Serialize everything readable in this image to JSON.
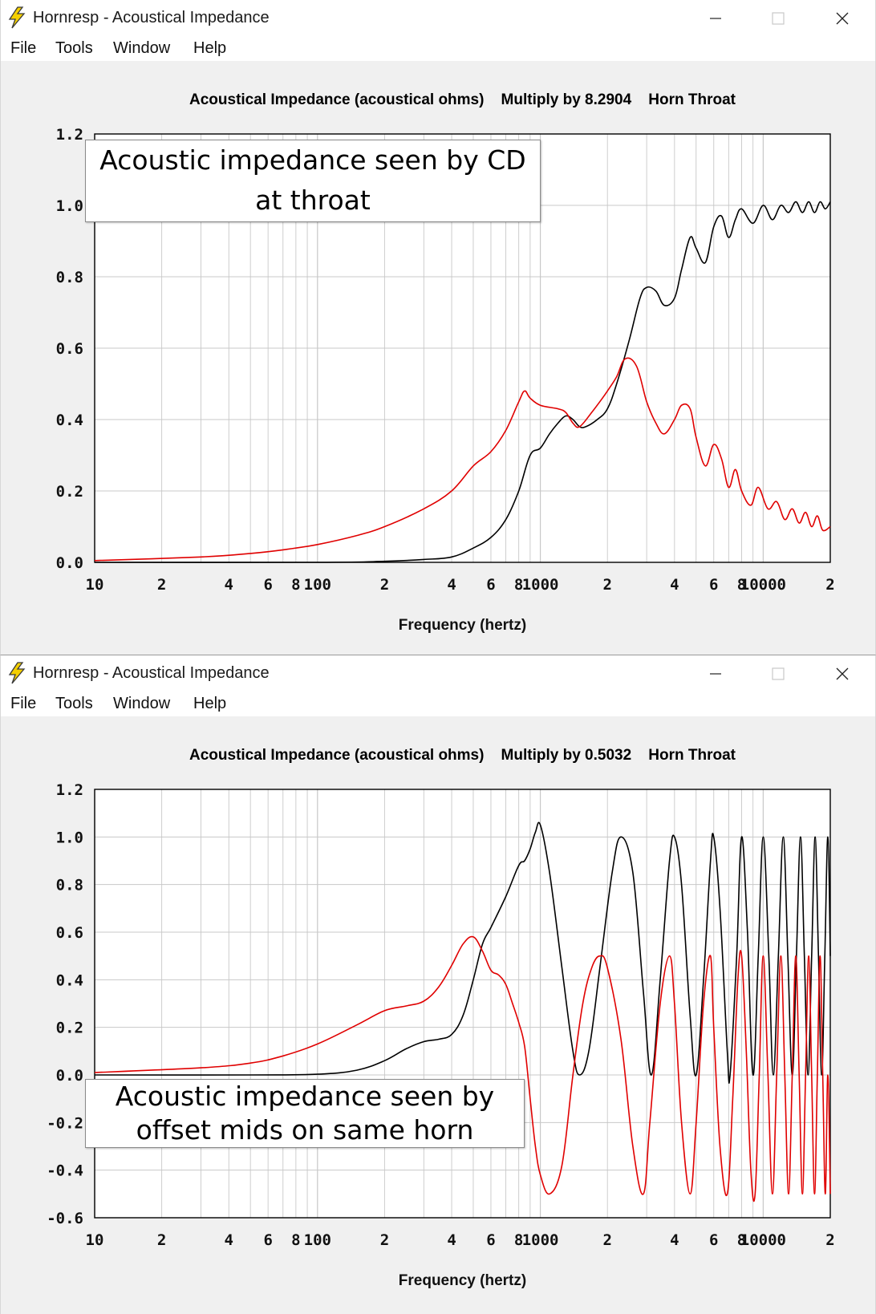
{
  "colors": {
    "response": "#000000",
    "reactance": "#e00000",
    "grid": "#c8c8c8",
    "plot_bg": "#ffffff",
    "panel_bg": "#f0f0f0"
  },
  "icons": {
    "app": "lightning-bolt-icon",
    "minimize": "minimize-icon",
    "maximize": "maximize-icon",
    "close": "close-icon"
  },
  "windows": [
    {
      "title": "Hornresp - Acoustical Impedance",
      "menu": [
        "File",
        "Tools",
        "Window",
        "Help"
      ],
      "annotation": [
        "Acoustic impedance seen by CD",
        "at throat"
      ]
    },
    {
      "title": "Hornresp - Acoustical Impedance",
      "menu": [
        "File",
        "Tools",
        "Window",
        "Help"
      ],
      "annotation": [
        "Acoustic impedance seen by",
        "offset mids on same horn"
      ]
    }
  ],
  "chart_data": [
    {
      "type": "line",
      "title": "Acoustical Impedance (acoustical ohms)    Multiply by 8.2904    Horn Throat",
      "xlabel": "Frequency (hertz)",
      "ylabel": "",
      "x_scale": "log",
      "xlim": [
        10,
        20000
      ],
      "ylim": [
        0.0,
        1.2
      ],
      "grid": true,
      "x_tick_labels": [
        "10",
        "2",
        "4",
        "6",
        "8",
        "100",
        "2",
        "4",
        "6",
        "8",
        "1000",
        "2",
        "4",
        "6",
        "8",
        "10000",
        "2"
      ],
      "y_tick_labels": [
        "0.0",
        "0.2",
        "0.4",
        "0.6",
        "0.8",
        "1.0",
        "1.2"
      ],
      "series": [
        {
          "color": "#000000",
          "points": [
            [
              10,
              0.0
            ],
            [
              100,
              0.0
            ],
            [
              200,
              0.003
            ],
            [
              300,
              0.008
            ],
            [
              400,
              0.015
            ],
            [
              500,
              0.04
            ],
            [
              600,
              0.07
            ],
            [
              700,
              0.12
            ],
            [
              800,
              0.2
            ],
            [
              900,
              0.3
            ],
            [
              1000,
              0.32
            ],
            [
              1100,
              0.36
            ],
            [
              1200,
              0.39
            ],
            [
              1300,
              0.41
            ],
            [
              1400,
              0.4
            ],
            [
              1500,
              0.38
            ],
            [
              1600,
              0.38
            ],
            [
              1800,
              0.4
            ],
            [
              2000,
              0.43
            ],
            [
              2200,
              0.5
            ],
            [
              2500,
              0.62
            ],
            [
              2800,
              0.74
            ],
            [
              3000,
              0.77
            ],
            [
              3300,
              0.76
            ],
            [
              3600,
              0.72
            ],
            [
              4000,
              0.74
            ],
            [
              4300,
              0.82
            ],
            [
              4700,
              0.91
            ],
            [
              5000,
              0.88
            ],
            [
              5500,
              0.84
            ],
            [
              6000,
              0.94
            ],
            [
              6500,
              0.97
            ],
            [
              7000,
              0.91
            ],
            [
              7500,
              0.96
            ],
            [
              8000,
              0.99
            ],
            [
              9000,
              0.95
            ],
            [
              10000,
              1.0
            ],
            [
              11000,
              0.96
            ],
            [
              12000,
              1.0
            ],
            [
              13000,
              0.98
            ],
            [
              14000,
              1.01
            ],
            [
              15000,
              0.98
            ],
            [
              16000,
              1.01
            ],
            [
              17000,
              0.98
            ],
            [
              18000,
              1.01
            ],
            [
              19000,
              0.99
            ],
            [
              20000,
              1.01
            ]
          ]
        },
        {
          "color": "#e00000",
          "points": [
            [
              10,
              0.005
            ],
            [
              30,
              0.015
            ],
            [
              50,
              0.025
            ],
            [
              70,
              0.035
            ],
            [
              100,
              0.05
            ],
            [
              150,
              0.075
            ],
            [
              200,
              0.1
            ],
            [
              300,
              0.15
            ],
            [
              400,
              0.2
            ],
            [
              500,
              0.27
            ],
            [
              600,
              0.31
            ],
            [
              700,
              0.37
            ],
            [
              800,
              0.45
            ],
            [
              850,
              0.48
            ],
            [
              900,
              0.46
            ],
            [
              1000,
              0.44
            ],
            [
              1200,
              0.43
            ],
            [
              1300,
              0.42
            ],
            [
              1400,
              0.39
            ],
            [
              1500,
              0.38
            ],
            [
              1700,
              0.42
            ],
            [
              1900,
              0.46
            ],
            [
              2000,
              0.48
            ],
            [
              2200,
              0.52
            ],
            [
              2400,
              0.57
            ],
            [
              2700,
              0.55
            ],
            [
              3000,
              0.45
            ],
            [
              3300,
              0.39
            ],
            [
              3600,
              0.36
            ],
            [
              4000,
              0.4
            ],
            [
              4300,
              0.44
            ],
            [
              4700,
              0.43
            ],
            [
              5000,
              0.35
            ],
            [
              5500,
              0.27
            ],
            [
              6000,
              0.33
            ],
            [
              6500,
              0.29
            ],
            [
              7000,
              0.21
            ],
            [
              7500,
              0.26
            ],
            [
              8000,
              0.2
            ],
            [
              8800,
              0.16
            ],
            [
              9500,
              0.21
            ],
            [
              10500,
              0.15
            ],
            [
              11500,
              0.17
            ],
            [
              12500,
              0.12
            ],
            [
              13500,
              0.15
            ],
            [
              14500,
              0.11
            ],
            [
              15500,
              0.14
            ],
            [
              16500,
              0.1
            ],
            [
              17500,
              0.13
            ],
            [
              18500,
              0.09
            ],
            [
              20000,
              0.1
            ]
          ]
        }
      ]
    },
    {
      "type": "line",
      "title": "Acoustical Impedance (acoustical ohms)    Multiply by 0.5032    Horn Throat",
      "xlabel": "Frequency (hertz)",
      "ylabel": "",
      "x_scale": "log",
      "xlim": [
        10,
        20000
      ],
      "ylim": [
        -0.6,
        1.2
      ],
      "grid": true,
      "x_tick_labels": [
        "10",
        "2",
        "4",
        "6",
        "8",
        "100",
        "2",
        "4",
        "6",
        "8",
        "1000",
        "2",
        "4",
        "6",
        "8",
        "10000",
        "2"
      ],
      "y_tick_labels": [
        "-0.6",
        "-0.4",
        "-0.2",
        "0.0",
        "0.2",
        "0.4",
        "0.6",
        "0.8",
        "1.0",
        "1.2"
      ],
      "series": [
        {
          "color": "#000000",
          "points": [
            [
              10,
              0.0
            ],
            [
              50,
              0.0
            ],
            [
              100,
              0.003
            ],
            [
              150,
              0.02
            ],
            [
              200,
              0.06
            ],
            [
              250,
              0.11
            ],
            [
              300,
              0.14
            ],
            [
              350,
              0.15
            ],
            [
              400,
              0.17
            ],
            [
              450,
              0.25
            ],
            [
              500,
              0.4
            ],
            [
              550,
              0.55
            ],
            [
              600,
              0.62
            ],
            [
              700,
              0.75
            ],
            [
              800,
              0.88
            ],
            [
              850,
              0.9
            ],
            [
              900,
              0.95
            ],
            [
              950,
              1.02
            ],
            [
              1000,
              1.05
            ],
            [
              1100,
              0.85
            ],
            [
              1250,
              0.45
            ],
            [
              1400,
              0.1
            ],
            [
              1500,
              0.0
            ],
            [
              1650,
              0.1
            ],
            [
              1850,
              0.45
            ],
            [
              2100,
              0.85
            ],
            [
              2300,
              1.0
            ],
            [
              2600,
              0.85
            ],
            [
              2900,
              0.35
            ],
            [
              3150,
              0.0
            ],
            [
              3450,
              0.4
            ],
            [
              3800,
              0.9
            ],
            [
              4000,
              1.0
            ],
            [
              4300,
              0.8
            ],
            [
              4700,
              0.25
            ],
            [
              5000,
              0.0
            ],
            [
              5400,
              0.4
            ],
            [
              5800,
              0.9
            ],
            [
              6000,
              1.0
            ],
            [
              6400,
              0.7
            ],
            [
              6900,
              0.1
            ],
            [
              7100,
              0.0
            ],
            [
              7600,
              0.5
            ],
            [
              8000,
              1.0
            ],
            [
              8500,
              0.6
            ],
            [
              9000,
              0.0
            ],
            [
              9500,
              0.5
            ],
            [
              10000,
              1.0
            ],
            [
              10600,
              0.5
            ],
            [
              11100,
              0.0
            ],
            [
              11700,
              0.5
            ],
            [
              12300,
              1.0
            ],
            [
              12900,
              0.5
            ],
            [
              13500,
              0.0
            ],
            [
              14100,
              0.5
            ],
            [
              14700,
              1.0
            ],
            [
              15300,
              0.5
            ],
            [
              15900,
              0.0
            ],
            [
              16500,
              0.5
            ],
            [
              17100,
              1.0
            ],
            [
              17700,
              0.5
            ],
            [
              18300,
              0.0
            ],
            [
              18900,
              0.5
            ],
            [
              19500,
              1.0
            ],
            [
              20000,
              0.5
            ]
          ]
        },
        {
          "color": "#e00000",
          "points": [
            [
              10,
              0.01
            ],
            [
              30,
              0.03
            ],
            [
              50,
              0.05
            ],
            [
              70,
              0.08
            ],
            [
              100,
              0.13
            ],
            [
              150,
              0.21
            ],
            [
              200,
              0.27
            ],
            [
              250,
              0.29
            ],
            [
              300,
              0.31
            ],
            [
              350,
              0.37
            ],
            [
              400,
              0.46
            ],
            [
              450,
              0.55
            ],
            [
              500,
              0.58
            ],
            [
              550,
              0.52
            ],
            [
              600,
              0.44
            ],
            [
              650,
              0.42
            ],
            [
              700,
              0.38
            ],
            [
              750,
              0.3
            ],
            [
              800,
              0.22
            ],
            [
              850,
              0.12
            ],
            [
              900,
              -0.1
            ],
            [
              950,
              -0.3
            ],
            [
              1000,
              -0.42
            ],
            [
              1100,
              -0.5
            ],
            [
              1250,
              -0.38
            ],
            [
              1400,
              0.0
            ],
            [
              1550,
              0.3
            ],
            [
              1700,
              0.45
            ],
            [
              1850,
              0.5
            ],
            [
              2000,
              0.45
            ],
            [
              2300,
              0.15
            ],
            [
              2600,
              -0.3
            ],
            [
              2900,
              -0.5
            ],
            [
              3100,
              -0.2
            ],
            [
              3450,
              0.3
            ],
            [
              3800,
              0.5
            ],
            [
              4000,
              0.3
            ],
            [
              4300,
              -0.2
            ],
            [
              4700,
              -0.5
            ],
            [
              5000,
              -0.2
            ],
            [
              5400,
              0.3
            ],
            [
              5800,
              0.5
            ],
            [
              6000,
              0.2
            ],
            [
              6400,
              -0.3
            ],
            [
              6900,
              -0.5
            ],
            [
              7300,
              -0.1
            ],
            [
              7700,
              0.4
            ],
            [
              8000,
              0.5
            ],
            [
              8400,
              0.1
            ],
            [
              8800,
              -0.4
            ],
            [
              9200,
              -0.5
            ],
            [
              9600,
              0.0
            ],
            [
              10000,
              0.5
            ],
            [
              10500,
              0.0
            ],
            [
              11000,
              -0.5
            ],
            [
              11500,
              0.0
            ],
            [
              12000,
              0.5
            ],
            [
              12500,
              0.0
            ],
            [
              13000,
              -0.5
            ],
            [
              13500,
              0.0
            ],
            [
              14000,
              0.5
            ],
            [
              14500,
              0.0
            ],
            [
              15000,
              -0.5
            ],
            [
              15500,
              0.0
            ],
            [
              16000,
              0.5
            ],
            [
              16500,
              0.0
            ],
            [
              17000,
              -0.5
            ],
            [
              17500,
              0.0
            ],
            [
              18000,
              0.5
            ],
            [
              18500,
              0.0
            ],
            [
              19000,
              -0.5
            ],
            [
              19500,
              0.0
            ],
            [
              20000,
              -0.5
            ]
          ]
        }
      ]
    }
  ]
}
